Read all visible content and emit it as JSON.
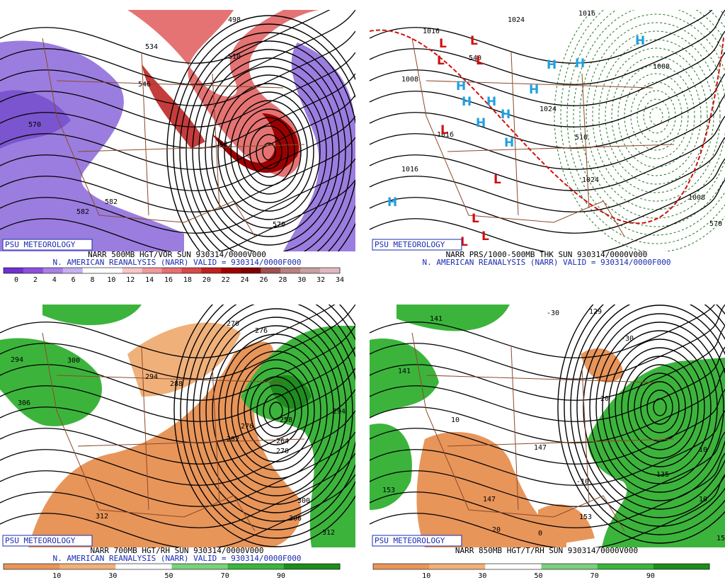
{
  "panels": [
    {
      "badge": "PSU METEOROLOGY",
      "caption": "NARR 500MB HGT/VOR SUN 930314/0000V000",
      "subtitle": "N. AMERICAN REANALYSIS (NARR) VALID = 930314/0000F000",
      "colorbar": [
        0,
        2,
        4,
        6,
        8,
        10,
        12,
        14,
        16,
        18,
        20,
        22,
        24,
        26,
        28,
        30,
        32,
        34
      ],
      "contour_labels": [
        "498",
        "534",
        "510",
        "546",
        "582",
        "570",
        "522",
        "582",
        "570"
      ]
    },
    {
      "badge": "PSU METEOROLOGY",
      "caption": "NARR PRS/1000-500MB THK SUN 930314/0000V000",
      "subtitle": "N. AMERICAN REANALYSIS (NARR) VALID = 930314/0000F000",
      "contour_labels": [
        "1016",
        "1024",
        "1016",
        "1008",
        "540",
        "1024",
        "1016",
        "1016",
        "510",
        "1024",
        "1008",
        "570",
        "1008"
      ],
      "centers": [
        "L",
        "L",
        "L",
        "L",
        "L",
        "L",
        "L",
        "L",
        "L",
        "H",
        "H",
        "H",
        "H",
        "H",
        "H",
        "H",
        "H",
        "H",
        "H",
        "H"
      ]
    },
    {
      "badge": "PSU METEOROLOGY",
      "caption": "NARR 700MB HGT/RH SUN 930314/0000V000",
      "subtitle": "N. AMERICAN REANALYSIS (NARR) VALID = 930314/0000F000",
      "colorbar": [
        10,
        30,
        50,
        70,
        90
      ],
      "contour_labels": [
        "270",
        "276",
        "294",
        "300",
        "306",
        "294",
        "288",
        "282",
        "276",
        "258",
        "264",
        "270",
        "300",
        "306",
        "312",
        "312",
        "294"
      ]
    },
    {
      "badge": "PSU METEOROLOGY",
      "caption": "NARR 850MB HGT/T/RH SUN 930314/0000V000",
      "colorbar": [
        10,
        30,
        50,
        70,
        90
      ],
      "contour_labels": [
        "141",
        "141",
        "129",
        "-30",
        "-30",
        "-20",
        "10",
        "10",
        "147",
        "-10",
        "153",
        "147",
        "153",
        "20",
        "0",
        "135",
        "10",
        "159"
      ]
    }
  ]
}
